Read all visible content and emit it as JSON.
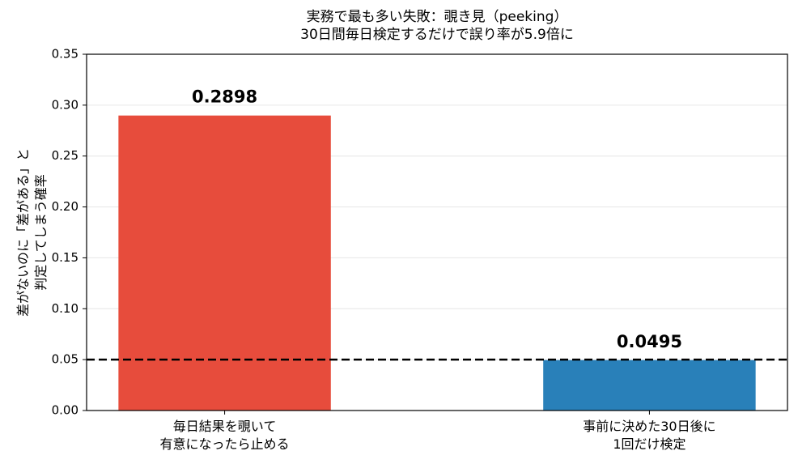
{
  "chart_data": {
    "type": "bar",
    "title": "実務で最も多い失敗：覗き見（peeking）\n30日間毎日検定するだけで誤り率が5.9倍に",
    "y_label": "差がないのに「差がある」と\n判定してしまう確率",
    "categories": [
      "毎日結果を覗いて\n有意になったら止める",
      "事前に決めた30日後に\n1回だけ検定"
    ],
    "values": [
      0.2898,
      0.0495
    ],
    "colors": [
      "#e74c3c",
      "#2980b9"
    ],
    "hline": 0.05,
    "ylim": [
      0,
      0.35
    ],
    "yticks": [
      {
        "value": 0,
        "label": "0.00"
      },
      {
        "value": 0.05,
        "label": "0.05"
      },
      {
        "value": 0.1,
        "label": "0.10"
      },
      {
        "value": 0.15,
        "label": "0.15"
      },
      {
        "value": 0.2,
        "label": "0.20"
      },
      {
        "value": 0.25,
        "label": "0.25"
      },
      {
        "value": 0.3,
        "label": "0.30"
      },
      {
        "value": 0.35,
        "label": "0.35"
      }
    ],
    "grid": true
  }
}
